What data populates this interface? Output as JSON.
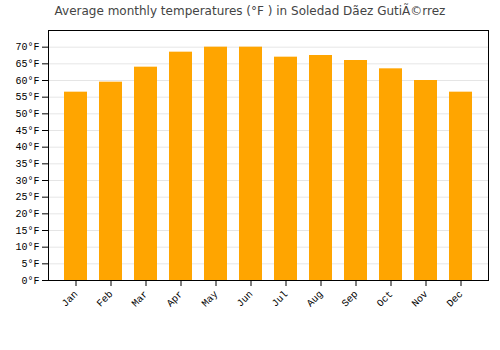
{
  "chart_data": {
    "type": "bar",
    "title": "Average monthly temperatures (°F ) in Soledad Dã­ez GutiÃ©rrez",
    "categories": [
      "Jan",
      "Feb",
      "Mar",
      "Apr",
      "May",
      "Jun",
      "Jul",
      "Aug",
      "Sep",
      "Oct",
      "Nov",
      "Dec"
    ],
    "values": [
      56.5,
      59.5,
      64.0,
      68.5,
      70.0,
      70.0,
      67.0,
      67.5,
      66.0,
      63.5,
      60.0,
      56.5
    ],
    "color": "#FFA500",
    "ylim": [
      0,
      75
    ],
    "yticks": [
      {
        "value": 0,
        "label": "0°F"
      },
      {
        "value": 5,
        "label": "5°F"
      },
      {
        "value": 10,
        "label": "10°F"
      },
      {
        "value": 15,
        "label": "15°F"
      },
      {
        "value": 20,
        "label": "20°F"
      },
      {
        "value": 25,
        "label": "25°F"
      },
      {
        "value": 30,
        "label": "30°F"
      },
      {
        "value": 35,
        "label": "35°F"
      },
      {
        "value": 40,
        "label": "40°F"
      },
      {
        "value": 45,
        "label": "45°F"
      },
      {
        "value": 50,
        "label": "50°F"
      },
      {
        "value": 55,
        "label": "55°F"
      },
      {
        "value": 60,
        "label": "60°F"
      },
      {
        "value": 65,
        "label": "65°F"
      },
      {
        "value": 70,
        "label": "70°F"
      }
    ],
    "grid": true
  }
}
